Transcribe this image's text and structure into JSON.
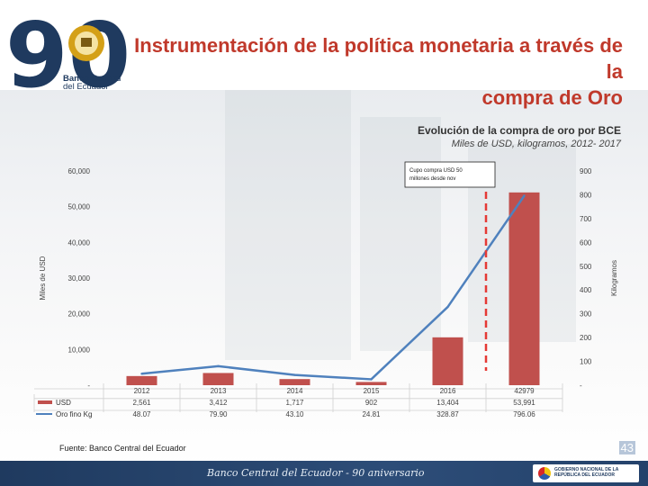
{
  "header": {
    "title_line1": "Instrumentación de la política monetaria a través de la",
    "title_line2": "compra de Oro",
    "logo_number": "90",
    "logo_line1": "Banco Central",
    "logo_line2": "del Ecuador"
  },
  "chart_data": {
    "type": "bar",
    "title": "Evolución de la compra de oro por BCE",
    "subtitle": "Miles de USD, kilogramos, 2012- 2017",
    "categories": [
      "2012",
      "2013",
      "2014",
      "2015",
      "2016",
      "42979"
    ],
    "series": [
      {
        "name": "USD",
        "type": "bar",
        "axis": "left",
        "values": [
          2561,
          3412,
          1717,
          902,
          13404,
          53991
        ],
        "labels": [
          "2,561",
          "3,412",
          "1,717",
          "902",
          "13,404",
          "53,991"
        ],
        "color": "#c0504d"
      },
      {
        "name": "Oro fino Kg",
        "type": "line",
        "axis": "right",
        "values": [
          48.07,
          79.9,
          43.1,
          24.81,
          328.87,
          796.06
        ],
        "labels": [
          "48.07",
          "79.90",
          "43.10",
          "24.81",
          "328.87",
          "796.06"
        ],
        "color": "#4f81bd"
      }
    ],
    "ylabel": "Miles de USD",
    "y2label": "Kilogramos",
    "ylim": [
      0,
      60000
    ],
    "y2lim": [
      0,
      900
    ],
    "yticks": [
      "-",
      "10,000",
      "20,000",
      "30,000",
      "40,000",
      "50,000",
      "60,000"
    ],
    "y2ticks": [
      "-",
      "100",
      "200",
      "300",
      "400",
      "500",
      "600",
      "700",
      "800",
      "900"
    ],
    "annotation": {
      "text": "Cupo compra USD 50 millones desde nov",
      "x_between": [
        "2016",
        "42979"
      ]
    },
    "legend": "bottom-left-table"
  },
  "footer": {
    "source": "Fuente: Banco Central del Ecuador",
    "page_number": "43",
    "banner_text": "Banco Central del Ecuador - 90 aniversario",
    "gov_text": "GOBIERNO NACIONAL DE LA REPÚBLICA DEL ECUADOR"
  },
  "colors": {
    "title": "#c0392b",
    "bar": "#c0504d",
    "line": "#4f81bd",
    "annotation": "#e53935",
    "footer": "#1f3a5f"
  }
}
